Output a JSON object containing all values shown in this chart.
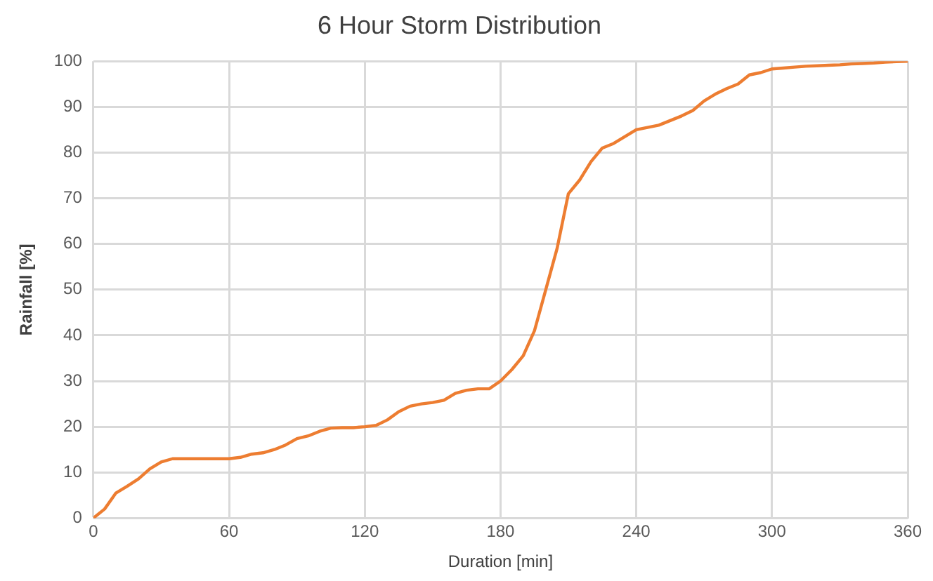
{
  "chart_data": {
    "type": "line",
    "title": "6 Hour Storm Distribution",
    "xlabel": "Duration [min]",
    "ylabel": "Rainfall [%]",
    "x": [
      0,
      5,
      10,
      15,
      20,
      25,
      30,
      35,
      40,
      45,
      50,
      55,
      60,
      65,
      70,
      75,
      80,
      85,
      90,
      95,
      100,
      105,
      110,
      115,
      120,
      125,
      130,
      135,
      140,
      145,
      150,
      155,
      160,
      165,
      170,
      175,
      180,
      185,
      190,
      195,
      200,
      205,
      210,
      215,
      220,
      225,
      230,
      235,
      240,
      245,
      250,
      255,
      260,
      265,
      270,
      275,
      280,
      285,
      290,
      295,
      300,
      305,
      310,
      315,
      320,
      325,
      330,
      335,
      340,
      345,
      350,
      355,
      360
    ],
    "series": [
      {
        "color": "#ed7d31",
        "values": [
          0,
          2,
          5.5,
          7,
          8.6,
          10.8,
          12.3,
          13,
          13,
          13,
          13,
          13,
          13,
          13.3,
          14,
          14.3,
          15,
          16,
          17.4,
          18,
          19,
          19.7,
          19.8,
          19.8,
          20,
          20.3,
          21.5,
          23.3,
          24.5,
          25,
          25.3,
          25.8,
          27.3,
          28,
          28.3,
          28.3,
          30,
          32.5,
          35.5,
          41,
          50,
          59,
          71,
          74,
          78,
          81,
          82,
          83.5,
          85,
          85.5,
          86,
          87,
          88,
          89.2,
          91.3,
          92.8,
          94,
          95,
          97,
          97.5,
          98.3,
          98.5,
          98.7,
          98.9,
          99,
          99.1,
          99.2,
          99.4,
          99.5,
          99.6,
          99.8,
          99.9,
          100
        ]
      }
    ],
    "xlim": [
      0,
      360
    ],
    "xticks": [
      0,
      60,
      120,
      180,
      240,
      300,
      360
    ],
    "ylim": [
      0,
      100
    ],
    "yticks": [
      0,
      10,
      20,
      30,
      40,
      50,
      60,
      70,
      80,
      90,
      100
    ],
    "grid": true,
    "legend": false,
    "marker": "none",
    "line_style": "solid"
  }
}
